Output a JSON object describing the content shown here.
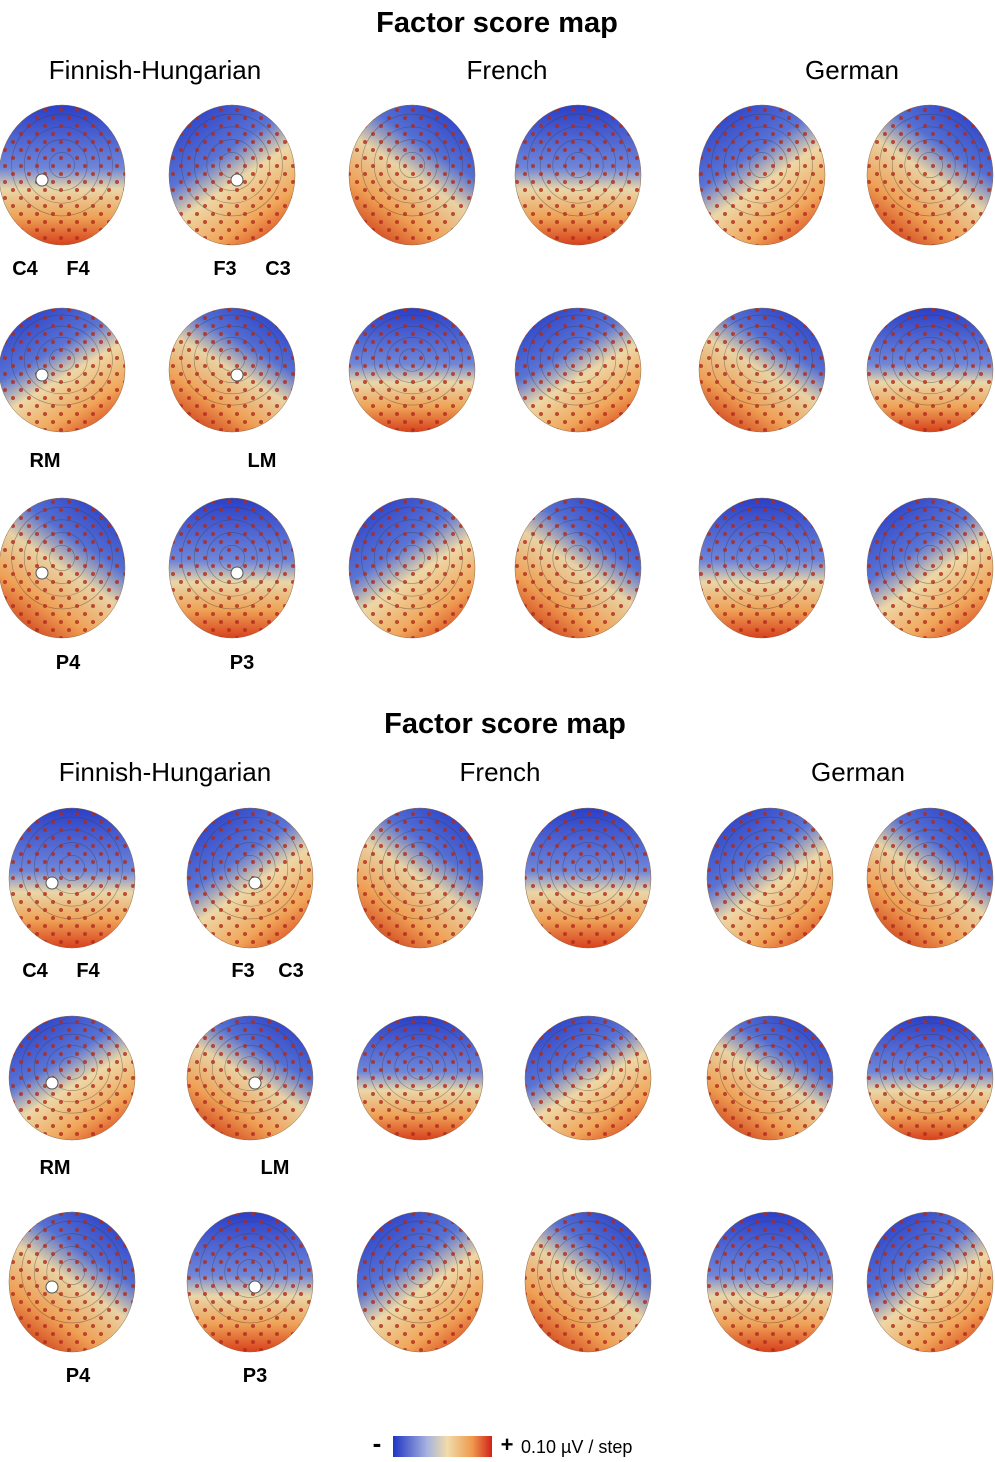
{
  "panels": [
    {
      "title": "Factor score map",
      "groups": [
        "Finnish-Hungarian",
        "French",
        "German"
      ],
      "electrodes": [
        "C4",
        "F4",
        "F3",
        "C3",
        "RM",
        "LM",
        "P4",
        "P3"
      ]
    },
    {
      "title": "Factor score map",
      "groups": [
        "Finnish-Hungarian",
        "French",
        "German"
      ],
      "electrodes": [
        "C4",
        "F4",
        "F3",
        "C3",
        "RM",
        "LM",
        "P4",
        "P3"
      ]
    }
  ],
  "colorbar": {
    "minus": "-",
    "plus": "+",
    "unit": "0.10 µV / step"
  }
}
